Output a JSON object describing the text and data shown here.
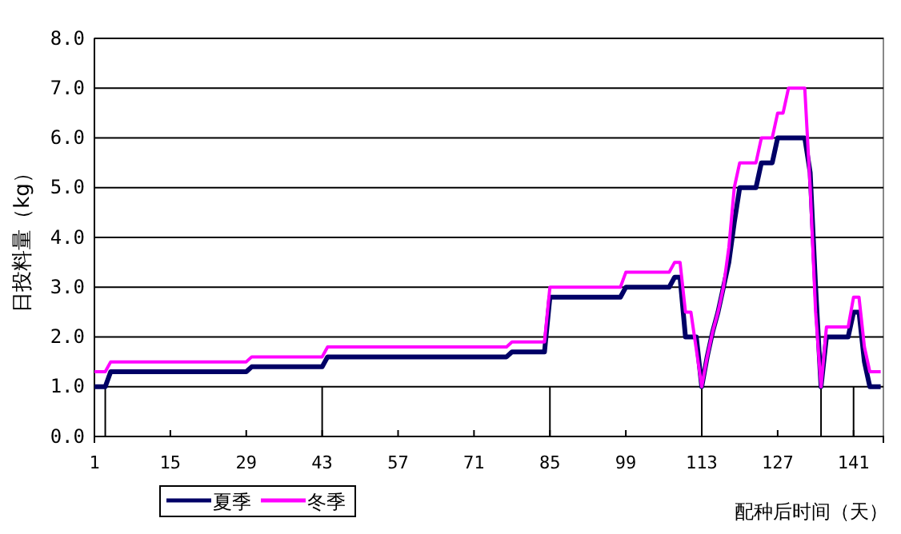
{
  "chart_data": {
    "type": "line",
    "xlabel": "配种后时间（天）",
    "ylabel": "日投料量（kg）",
    "xlim": [
      1,
      146.5
    ],
    "xticks": [
      1,
      15,
      29,
      43,
      57,
      71,
      85,
      99,
      113,
      127,
      141
    ],
    "ylim": [
      0,
      8
    ],
    "yticks": [
      {
        "value": 0,
        "label": "0.0"
      },
      {
        "value": 1,
        "label": "1.0"
      },
      {
        "value": 2,
        "label": "2.0"
      },
      {
        "value": 3,
        "label": "3.0"
      },
      {
        "value": 4,
        "label": "4.0"
      },
      {
        "value": 5,
        "label": "5.0"
      },
      {
        "value": 6,
        "label": "6.0"
      },
      {
        "value": 7,
        "label": "7.0"
      },
      {
        "value": 8,
        "label": "8.0"
      }
    ],
    "grid": "y",
    "legend": "bottom left",
    "marker": "none",
    "line_style": "solid",
    "ref_lines": [
      {
        "axis": "x",
        "value": 3,
        "color": "#000000"
      },
      {
        "axis": "x",
        "value": 43,
        "color": "#000000"
      },
      {
        "axis": "x",
        "value": 85,
        "color": "#000000"
      },
      {
        "axis": "x",
        "value": 113,
        "color": "#000000"
      },
      {
        "axis": "x",
        "value": 135,
        "color": "#000000"
      },
      {
        "axis": "x",
        "value": 141,
        "color": "#000000"
      }
    ],
    "series": [
      {
        "name": "夏季",
        "color": "#000066",
        "x": [
          1,
          3,
          4,
          29,
          30,
          43,
          44,
          77,
          78,
          84,
          85,
          98,
          99,
          107,
          108,
          109,
          110,
          112,
          113,
          114,
          115,
          116,
          117,
          118,
          119,
          120,
          123,
          124,
          126,
          127,
          132,
          133,
          134,
          135,
          136,
          140,
          141,
          142,
          143,
          144,
          146
        ],
        "values": [
          1.0,
          1.0,
          1.3,
          1.3,
          1.4,
          1.4,
          1.6,
          1.6,
          1.7,
          1.7,
          2.8,
          2.8,
          3.0,
          3.0,
          3.2,
          3.2,
          2.0,
          2.0,
          1.0,
          1.6,
          2.1,
          2.5,
          3.0,
          3.5,
          4.3,
          5.0,
          5.0,
          5.5,
          5.5,
          6.0,
          6.0,
          5.3,
          3.0,
          1.0,
          2.0,
          2.0,
          2.5,
          2.5,
          1.5,
          1.0,
          1.0
        ]
      },
      {
        "name": "冬季",
        "color": "#ff00ff",
        "x": [
          1,
          3,
          4,
          29,
          30,
          43,
          44,
          77,
          78,
          84,
          85,
          98,
          99,
          107,
          108,
          109,
          110,
          111,
          113,
          114,
          115,
          116,
          117,
          118,
          119,
          120,
          123,
          124,
          126,
          127,
          128,
          129,
          132,
          133,
          134,
          135,
          136,
          140,
          141,
          142,
          143,
          144,
          146
        ],
        "values": [
          1.3,
          1.3,
          1.5,
          1.5,
          1.6,
          1.6,
          1.8,
          1.8,
          1.9,
          1.9,
          3.0,
          3.0,
          3.3,
          3.3,
          3.5,
          3.5,
          2.5,
          2.5,
          1.0,
          1.6,
          2.1,
          2.5,
          3.0,
          3.8,
          5.0,
          5.5,
          5.5,
          6.0,
          6.0,
          6.5,
          6.5,
          7.0,
          7.0,
          5.0,
          2.5,
          1.0,
          2.2,
          2.2,
          2.8,
          2.8,
          1.8,
          1.3,
          1.3
        ]
      }
    ]
  }
}
